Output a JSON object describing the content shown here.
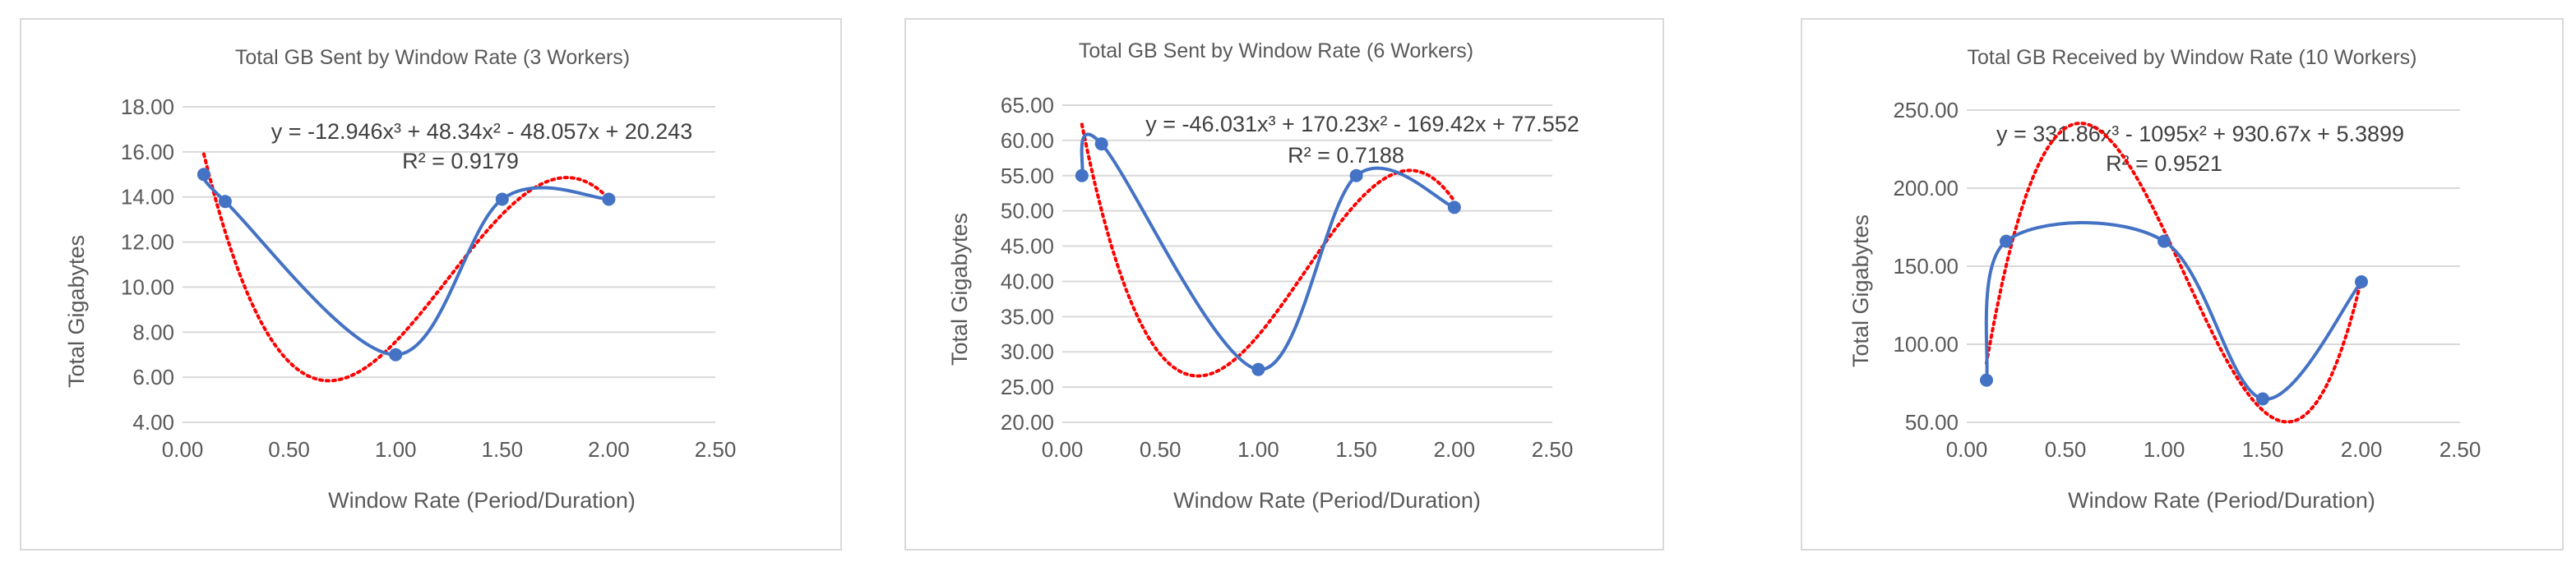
{
  "colors": {
    "series": "#4472c4",
    "trendline": "#ff0000",
    "text": "#595959",
    "grid": "#d9d9d9"
  },
  "chart_data": [
    {
      "type": "scatter",
      "title": "Total GB Sent by Window Rate (3 Workers)",
      "xlabel": "Window Rate (Period/Duration)",
      "ylabel": "Total Gigabytes",
      "xlim": [
        0,
        2.5
      ],
      "ylim": [
        4,
        18
      ],
      "xticks": [
        "0.00",
        "0.50",
        "1.00",
        "1.50",
        "2.00",
        "2.50"
      ],
      "yticks": [
        "4.00",
        "6.00",
        "8.00",
        "10.00",
        "12.00",
        "14.00",
        "16.00",
        "18.00"
      ],
      "grid": true,
      "x": [
        0.1,
        0.2,
        1.0,
        1.5,
        2.0
      ],
      "y": [
        15.0,
        13.8,
        7.0,
        13.9,
        13.9
      ],
      "trendline": {
        "type": "polynomial",
        "coefficients": [
          -12.946,
          48.34,
          -48.057,
          20.243
        ],
        "equation": "y = -12.946x³ + 48.34x² - 48.057x + 20.243",
        "r2": "R² = 0.9179"
      }
    },
    {
      "type": "scatter",
      "title": "Total GB Sent by Window Rate (6 Workers)",
      "xlabel": "Window Rate (Period/Duration)",
      "ylabel": "Total Gigabytes",
      "xlim": [
        0,
        2.5
      ],
      "ylim": [
        20,
        65
      ],
      "xticks": [
        "0.00",
        "0.50",
        "1.00",
        "1.50",
        "2.00",
        "2.50"
      ],
      "yticks": [
        "20.00",
        "25.00",
        "30.00",
        "35.00",
        "40.00",
        "45.00",
        "50.00",
        "55.00",
        "60.00",
        "65.00"
      ],
      "grid": true,
      "x": [
        0.1,
        0.2,
        1.0,
        1.5,
        2.0
      ],
      "y": [
        55.0,
        59.5,
        27.5,
        55.0,
        50.5
      ],
      "trendline": {
        "type": "polynomial",
        "coefficients": [
          -46.031,
          170.23,
          -169.42,
          77.552
        ],
        "equation": "y = -46.031x³ + 170.23x² - 169.42x + 77.552",
        "r2": "R² = 0.7188"
      }
    },
    {
      "type": "scatter",
      "title": "Total GB Received by Window Rate (10 Workers)",
      "xlabel": "Window Rate (Period/Duration)",
      "ylabel": "Total Gigabytes",
      "xlim": [
        0,
        2.5
      ],
      "ylim": [
        50,
        250
      ],
      "xticks": [
        "0.00",
        "0.50",
        "1.00",
        "1.50",
        "2.00",
        "2.50"
      ],
      "yticks": [
        "50.00",
        "100.00",
        "150.00",
        "200.00",
        "250.00"
      ],
      "grid": true,
      "x": [
        0.1,
        0.2,
        1.0,
        1.5,
        2.0
      ],
      "y": [
        77,
        166,
        166,
        65,
        140
      ],
      "trendline": {
        "type": "polynomial",
        "coefficients": [
          331.86,
          -1095,
          930.67,
          5.3899
        ],
        "equation": "y = 331.86x³ - 1095x² + 930.67x + 5.3899",
        "r2": "R² = 0.9521"
      }
    }
  ]
}
